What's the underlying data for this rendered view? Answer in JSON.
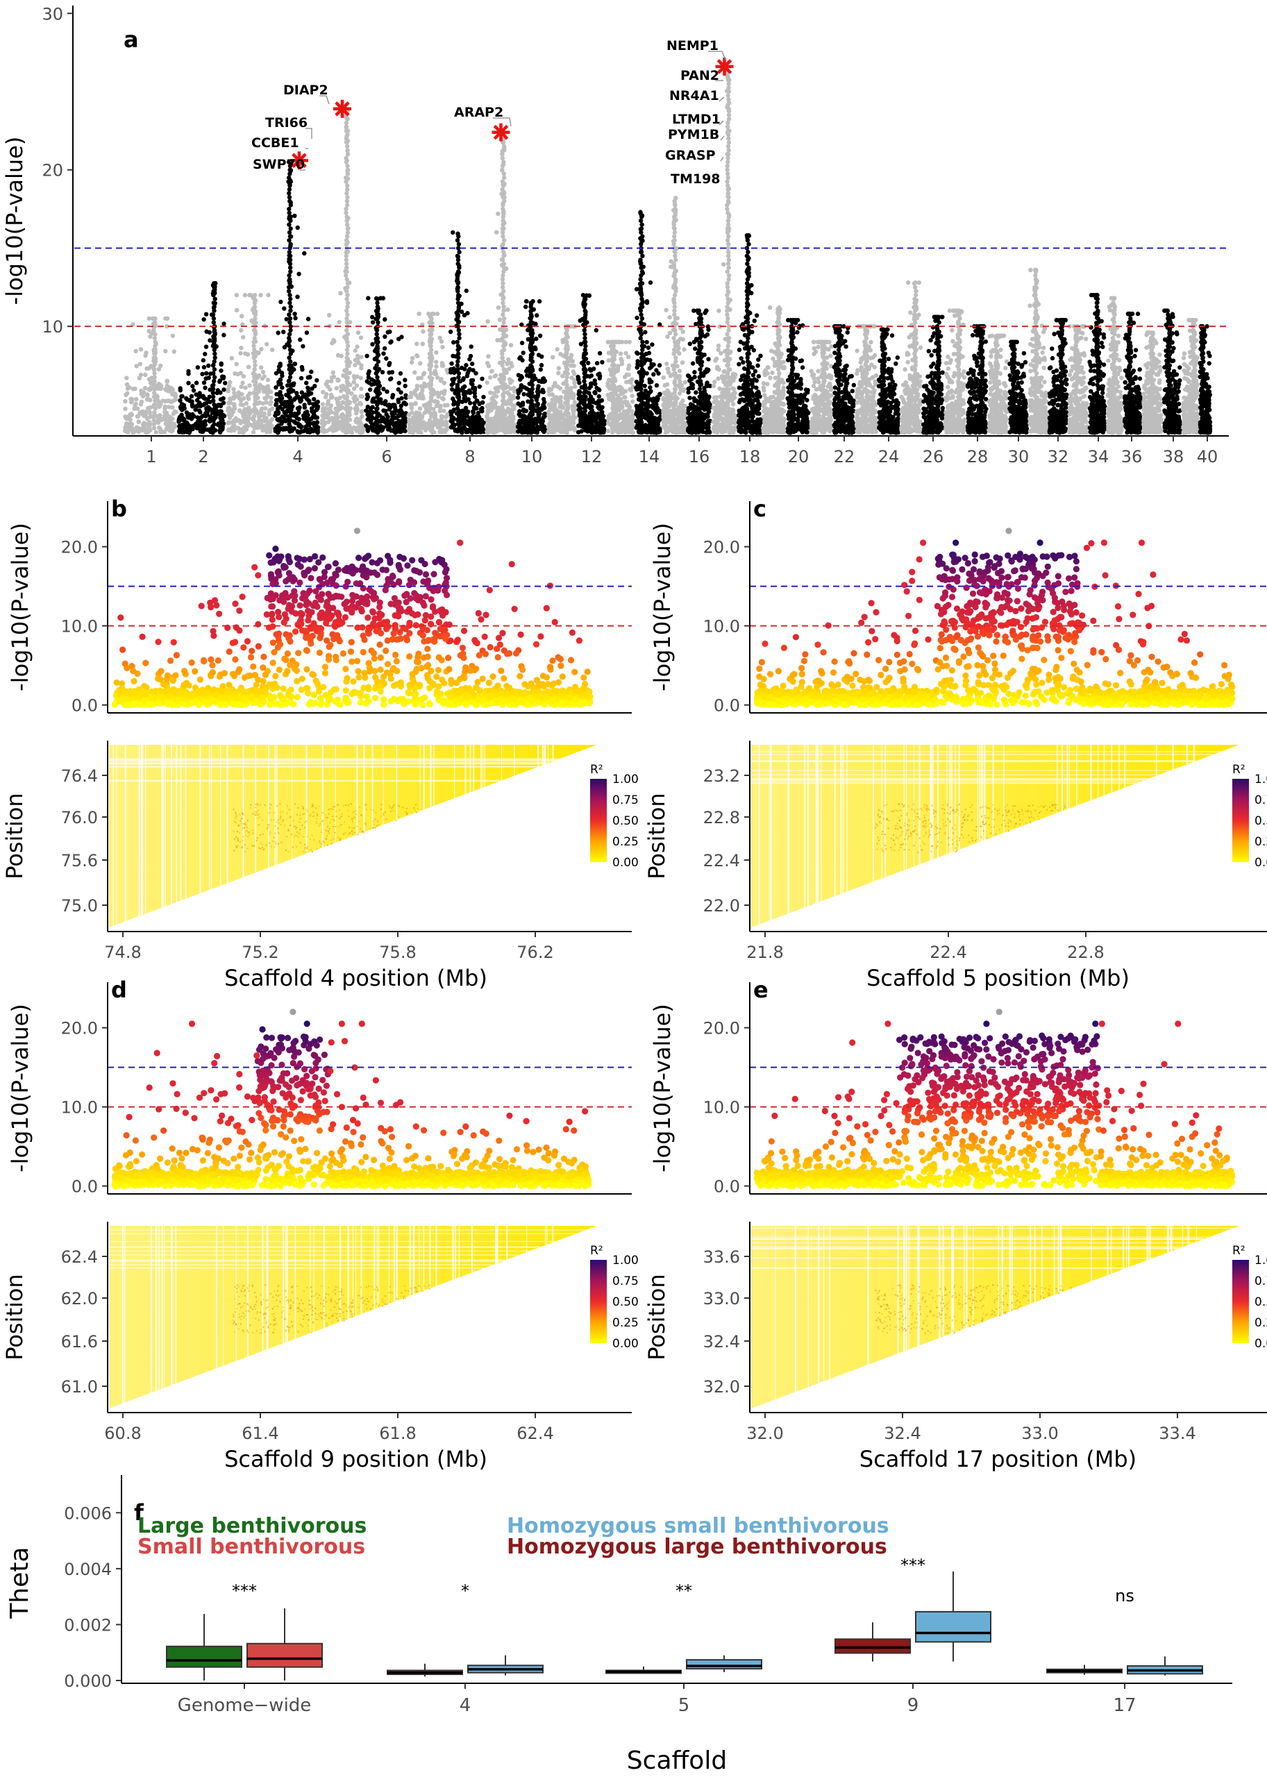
{
  "panel_labels": [
    "a",
    "b",
    "c",
    "d",
    "e",
    "f"
  ],
  "colors": {
    "manhattan_light": "#bdbdbd",
    "manhattan_dark": "#000000",
    "threshold_blue": "#1f1fbf",
    "threshold_red": "#d62728",
    "star": "#ee1111",
    "large_benthivorous": "#1a6e1a",
    "small_benthivorous": "#d64545",
    "homozygous_small": "#6aaed6",
    "homozygous_large": "#8b1a1a"
  },
  "chart_data": [
    {
      "type": "scatter",
      "panel": "a",
      "ylabel": "-log10(P-value)",
      "xlabel": "",
      "ylim": [
        3,
        30.5
      ],
      "yticks": [
        10,
        20,
        30
      ],
      "x_tick_labels": [
        "1",
        "2",
        "4",
        "6",
        "8",
        "10",
        "12",
        "14",
        "16",
        "18",
        "20",
        "22",
        "24",
        "26",
        "28",
        "30",
        "32",
        "34",
        "36",
        "38",
        "40"
      ],
      "thresholds": [
        15,
        10
      ],
      "scaffolds_peak": [
        {
          "scaffold": 1,
          "peak": 10.5
        },
        {
          "scaffold": 2,
          "peak": 12.8
        },
        {
          "scaffold": 3,
          "peak": 12
        },
        {
          "scaffold": 4,
          "peak": 20.6
        },
        {
          "scaffold": 5,
          "peak": 23.8
        },
        {
          "scaffold": 6,
          "peak": 11.8
        },
        {
          "scaffold": 7,
          "peak": 10.8
        },
        {
          "scaffold": 8,
          "peak": 16
        },
        {
          "scaffold": 9,
          "peak": 22.4
        },
        {
          "scaffold": 10,
          "peak": 11.6
        },
        {
          "scaffold": 11,
          "peak": 10
        },
        {
          "scaffold": 12,
          "peak": 12
        },
        {
          "scaffold": 13,
          "peak": 9
        },
        {
          "scaffold": 14,
          "peak": 17.3
        },
        {
          "scaffold": 15,
          "peak": 18.2
        },
        {
          "scaffold": 16,
          "peak": 11
        },
        {
          "scaffold": 17,
          "peak": 26.6
        },
        {
          "scaffold": 18,
          "peak": 16
        },
        {
          "scaffold": 19,
          "peak": 11.2
        },
        {
          "scaffold": 20,
          "peak": 10.4
        },
        {
          "scaffold": 21,
          "peak": 9
        },
        {
          "scaffold": 22,
          "peak": 10
        },
        {
          "scaffold": 23,
          "peak": 10
        },
        {
          "scaffold": 24,
          "peak": 9.8
        },
        {
          "scaffold": 25,
          "peak": 12.8
        },
        {
          "scaffold": 26,
          "peak": 10.6
        },
        {
          "scaffold": 27,
          "peak": 11
        },
        {
          "scaffold": 28,
          "peak": 10
        },
        {
          "scaffold": 29,
          "peak": 9.4
        },
        {
          "scaffold": 30,
          "peak": 9
        },
        {
          "scaffold": 31,
          "peak": 13.6
        },
        {
          "scaffold": 32,
          "peak": 10.4
        },
        {
          "scaffold": 33,
          "peak": 10
        },
        {
          "scaffold": 34,
          "peak": 12
        },
        {
          "scaffold": 35,
          "peak": 11.8
        },
        {
          "scaffold": 36,
          "peak": 10.8
        },
        {
          "scaffold": 37,
          "peak": 9.6
        },
        {
          "scaffold": 38,
          "peak": 11
        },
        {
          "scaffold": 39,
          "peak": 10.4
        },
        {
          "scaffold": 40,
          "peak": 10
        }
      ],
      "starred_hits": [
        {
          "scaffold": 4,
          "y": 20.6
        },
        {
          "scaffold": 5,
          "y": 23.9
        },
        {
          "scaffold": 9,
          "y": 22.4
        },
        {
          "scaffold": 17,
          "y": 26.6
        }
      ],
      "gene_labels": [
        "NEMP1",
        "DIAP2",
        "PAN2",
        "NR4A1",
        "TRI66",
        "ARAP2",
        "LTMD1",
        "PYM1B",
        "CCBE1",
        "GRASP",
        "SWP70",
        "TM198"
      ]
    },
    {
      "type": "scatter",
      "panel": "b",
      "ylabel": "-log10(P-value)",
      "yticks": [
        "0.0",
        "10.0",
        "20.0"
      ],
      "ylim": [
        -1,
        24
      ],
      "thresholds": [
        15,
        10
      ],
      "peak_x_range": [
        75.3,
        76.0
      ],
      "ld_ylabel": "Position",
      "ld_yticks": [
        "75.0",
        "75.6",
        "76.0",
        "76.4"
      ],
      "xlabel": "Scaffold 4 position (Mb)",
      "xticks": [
        "74.8",
        "75.2",
        "75.8",
        "76.2"
      ]
    },
    {
      "type": "scatter",
      "panel": "c",
      "ylabel": "-log10(P-value)",
      "yticks": [
        "0.0",
        "10.0",
        "20.0"
      ],
      "ylim": [
        -1,
        24
      ],
      "thresholds": [
        15,
        10
      ],
      "peak_x_range": [
        22.45,
        22.75
      ],
      "ld_ylabel": "Position",
      "ld_yticks": [
        "22.0",
        "22.4",
        "22.8",
        "23.2"
      ],
      "xlabel": "Scaffold 5 position (Mb)",
      "xticks": [
        "21.8",
        "22.4",
        "22.8"
      ]
    },
    {
      "type": "scatter",
      "panel": "d",
      "ylabel": "-log10(P-value)",
      "yticks": [
        "0.0",
        "10.0",
        "20.0"
      ],
      "ylim": [
        -1,
        24
      ],
      "thresholds": [
        15,
        10
      ],
      "peak_x_range": [
        61.45,
        61.7
      ],
      "ld_ylabel": "Position",
      "ld_yticks": [
        "61.0",
        "61.6",
        "62.0",
        "62.4"
      ],
      "xlabel": "Scaffold 9 position (Mb)",
      "xticks": [
        "60.8",
        "61.4",
        "61.8",
        "62.4"
      ]
    },
    {
      "type": "scatter",
      "panel": "e",
      "ylabel": "-log10(P-value)",
      "yticks": [
        "0.0",
        "10.0",
        "20.0"
      ],
      "ylim": [
        -1,
        24
      ],
      "thresholds": [
        15,
        10
      ],
      "peak_x_range": [
        32.5,
        33.2
      ],
      "ld_ylabel": "Position",
      "ld_yticks": [
        "32.0",
        "32.4",
        "33.0",
        "33.6"
      ],
      "xlabel": "Scaffold 17 position (Mb)",
      "xticks": [
        "32.0",
        "32.4",
        "33.0",
        "33.4"
      ]
    },
    {
      "type": "box",
      "panel": "f",
      "ylabel": "Theta",
      "xlabel": "Scaffold",
      "ylim": [
        -0.0001,
        0.0071
      ],
      "yticks": [
        "0.000",
        "0.002",
        "0.004",
        "0.006"
      ],
      "categories": [
        "Genome−wide",
        "4",
        "5",
        "9",
        "17"
      ],
      "significance": [
        "***",
        "*",
        "**",
        "***",
        "ns"
      ],
      "legend": [
        "Large benthivorous",
        "Small benthivorous",
        "Homozygous small benthivorous",
        "Homozygous large benthivorous"
      ],
      "boxes": [
        {
          "category": "Genome−wide",
          "group": "Large benthivorous",
          "min": 0.0,
          "q1": 0.00048,
          "median": 0.00072,
          "q3": 0.00122,
          "max": 0.00238
        },
        {
          "category": "Genome−wide",
          "group": "Small benthivorous",
          "min": 0.0,
          "q1": 0.00048,
          "median": 0.00078,
          "q3": 0.00132,
          "max": 0.00258
        },
        {
          "category": "4",
          "group": "Homozygous large benthivorous",
          "min": 0.00014,
          "q1": 0.00022,
          "median": 0.00028,
          "q3": 0.00036,
          "max": 0.0006
        },
        {
          "category": "4",
          "group": "Homozygous small benthivorous",
          "min": 0.00018,
          "q1": 0.00028,
          "median": 0.0004,
          "q3": 0.00054,
          "max": 0.0009
        },
        {
          "category": "5",
          "group": "Homozygous large benthivorous",
          "min": 0.00024,
          "q1": 0.00028,
          "median": 0.00032,
          "q3": 0.00036,
          "max": 0.0005
        },
        {
          "category": "5",
          "group": "Homozygous small benthivorous",
          "min": 0.0003,
          "q1": 0.00042,
          "median": 0.00052,
          "q3": 0.00074,
          "max": 0.0009
        },
        {
          "category": "9",
          "group": "Homozygous large benthivorous",
          "min": 0.00068,
          "q1": 0.00098,
          "median": 0.00118,
          "q3": 0.00148,
          "max": 0.00208
        },
        {
          "category": "9",
          "group": "Homozygous small benthivorous",
          "min": 0.00068,
          "q1": 0.00138,
          "median": 0.0017,
          "q3": 0.00246,
          "max": 0.0039
        },
        {
          "category": "17",
          "group": "Homozygous large benthivorous",
          "min": 0.0002,
          "q1": 0.00028,
          "median": 0.00034,
          "q3": 0.0004,
          "max": 0.00056
        },
        {
          "category": "17",
          "group": "Homozygous small benthivorous",
          "min": 0.00018,
          "q1": 0.00024,
          "median": 0.00036,
          "q3": 0.00052,
          "max": 0.00086
        }
      ]
    }
  ],
  "ld_legend": {
    "title": "R²",
    "ticks": [
      "1.00",
      "0.75",
      "0.50",
      "0.25",
      "0.00"
    ]
  }
}
